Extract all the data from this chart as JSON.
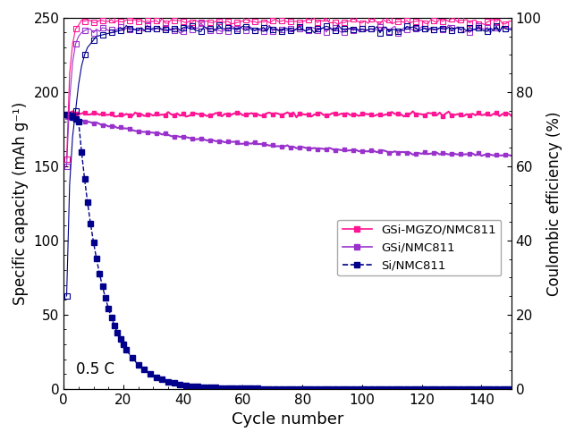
{
  "title": "",
  "xlabel": "Cycle number",
  "ylabel_left": "Specific capacity (mAh g⁻¹)",
  "ylabel_right": "Coulombic efficiency (%)",
  "annotation": "0.5 C",
  "xlim": [
    0,
    150
  ],
  "ylim_left": [
    0,
    250
  ],
  "ylim_right": [
    0,
    100
  ],
  "yticks_left": [
    0,
    50,
    100,
    150,
    200,
    250
  ],
  "yticks_right": [
    0,
    20,
    40,
    60,
    80,
    100
  ],
  "xticks": [
    0,
    20,
    40,
    60,
    80,
    100,
    120,
    140
  ],
  "colors": {
    "gsi_mgzo": "#FF1493",
    "gsi": "#9932CC",
    "si": "#00008B"
  },
  "legend_labels": [
    "GSi-MGZO/NMC811",
    "GSi/NMC811",
    "Si/NMC811"
  ]
}
